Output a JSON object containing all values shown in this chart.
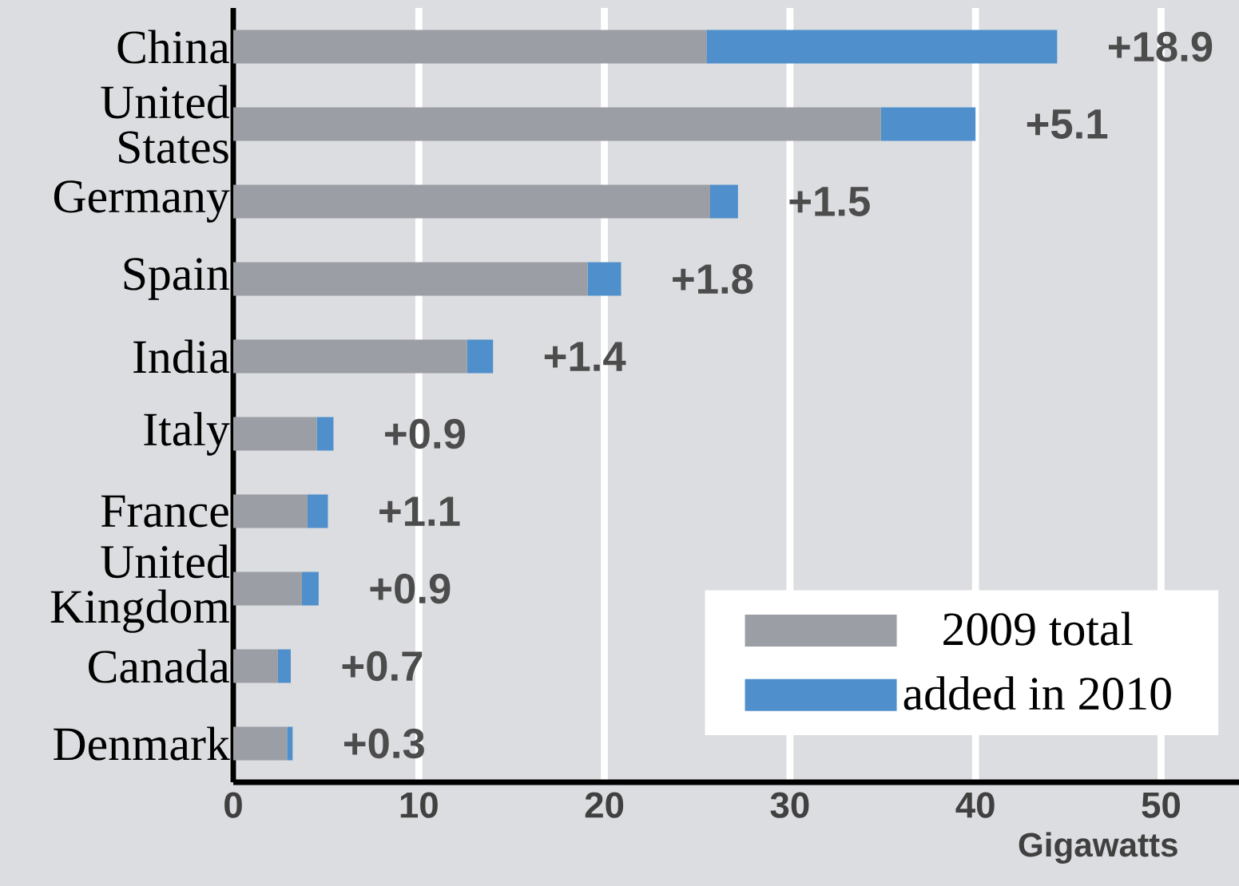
{
  "chart_data": {
    "type": "bar",
    "orientation": "horizontal",
    "stacked": true,
    "xlabel": "Gigawatts",
    "categories": [
      "China",
      "United States",
      "Germany",
      "Spain",
      "India",
      "Italy",
      "France",
      "United Kingdom",
      "Canada",
      "Denmark"
    ],
    "series": [
      {
        "name": "2009 total",
        "color": "#9b9ea4",
        "values": [
          25.5,
          34.9,
          25.7,
          19.1,
          12.6,
          4.5,
          4.0,
          3.7,
          2.4,
          2.9
        ]
      },
      {
        "name": "added in 2010",
        "color": "#4f8fcb",
        "values": [
          18.9,
          5.1,
          1.5,
          1.8,
          1.4,
          0.9,
          1.1,
          0.9,
          0.7,
          0.3
        ],
        "value_labels": [
          "+18.9",
          "+5.1",
          "+1.5",
          "+1.8",
          "+1.4",
          "+0.9",
          "+1.1",
          "+0.9",
          "+0.7",
          "+0.3"
        ]
      }
    ],
    "xlim": [
      0,
      54.2
    ],
    "xticks": [
      0,
      10,
      20,
      30,
      40,
      50
    ],
    "grid": "x",
    "legend": "bottom right"
  }
}
